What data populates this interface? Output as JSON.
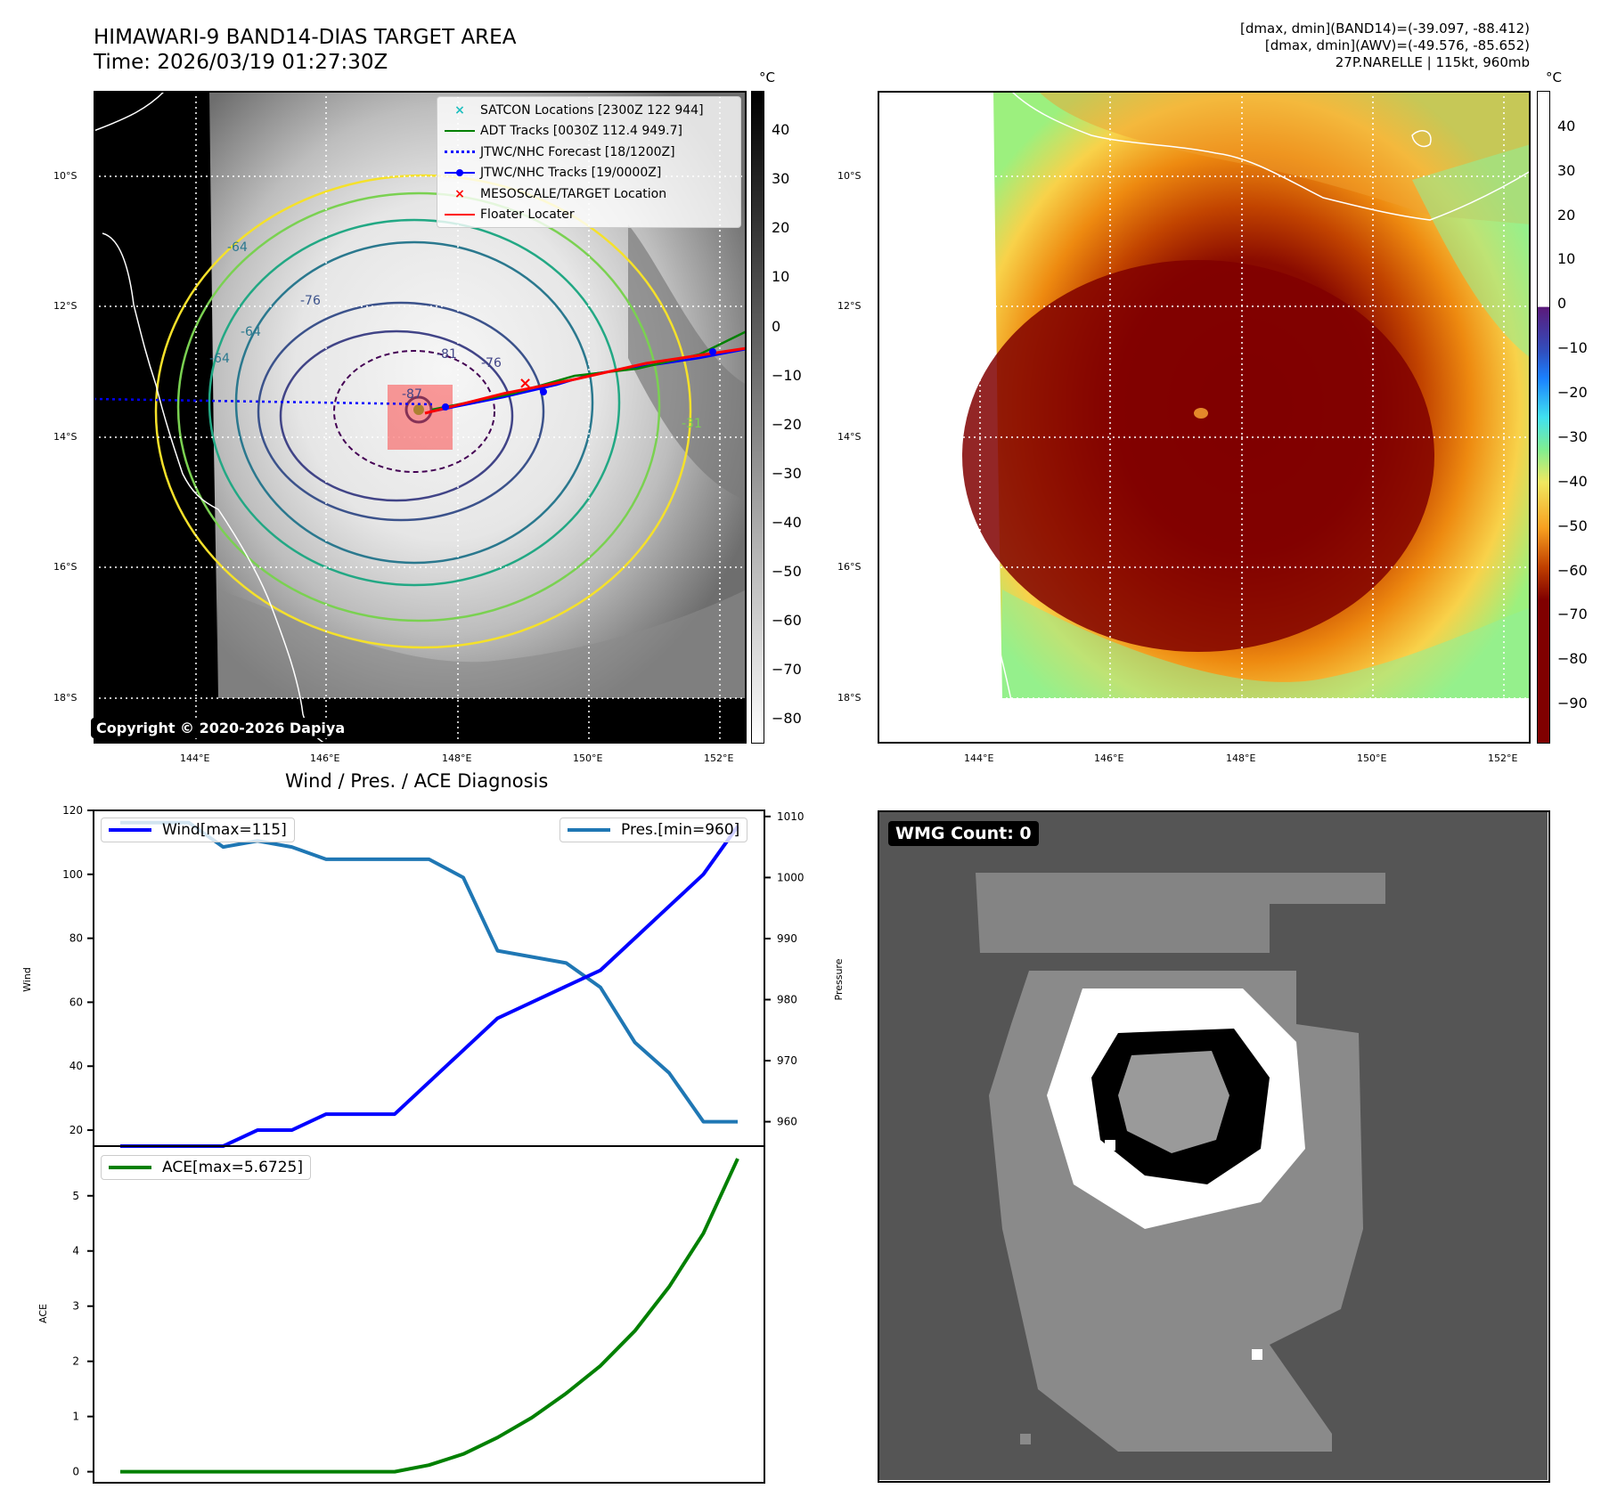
{
  "header": {
    "title": "HIMAWARI-9 BAND14-DIAS TARGET AREA",
    "time": "Time: 2026/03/19 01:27:30Z",
    "info_line1": "[dmax, dmin](BAND14)=(-39.097, -88.412)",
    "info_line2": "[dmax, dmin](AWV)=(-49.576, -85.652)",
    "info_line3": "27P.NARELLE | 115kt, 960mb"
  },
  "map_axes": {
    "lat_ticks": [
      "10°S",
      "12°S",
      "14°S",
      "16°S",
      "18°S"
    ],
    "lon_ticks": [
      "144°E",
      "146°E",
      "148°E",
      "150°E",
      "152°E"
    ]
  },
  "left_map": {
    "copyright": "Copyright © 2020-2026 Dapiya",
    "colorbar_unit": "°C",
    "colorbar_ticks": [
      "40",
      "30",
      "20",
      "10",
      "0",
      "−10",
      "−20",
      "−30",
      "−40",
      "−50",
      "−60",
      "−70",
      "−80"
    ],
    "contour_labels": [
      "-64",
      "-76",
      "-64",
      "-64",
      "-81",
      "-76",
      "-87",
      "-31"
    ],
    "legend": [
      {
        "label": "SATCON Locations [2300Z 122 944]",
        "color": "#1fbfbf",
        "marker": "x-icon"
      },
      {
        "label": "ADT Tracks [0030Z 112.4 949.7]",
        "color": "#008000",
        "marker": "line-icon"
      },
      {
        "label": "JTWC/NHC Forecast [18/1200Z]",
        "color": "#0000ff",
        "marker": "dotted-line-icon"
      },
      {
        "label": "JTWC/NHC Tracks [19/0000Z]",
        "color": "#0000ff",
        "marker": "line-dot-icon"
      },
      {
        "label": "MESOSCALE/TARGET Location",
        "color": "#ff0000",
        "marker": "x-icon"
      },
      {
        "label": "Floater Locater",
        "color": "#ff0000",
        "marker": "line-icon"
      }
    ]
  },
  "right_map": {
    "colorbar_unit": "°C",
    "colorbar_ticks": [
      "40",
      "30",
      "20",
      "10",
      "0",
      "−10",
      "−20",
      "−30",
      "−40",
      "−50",
      "−60",
      "−70",
      "−80",
      "−90"
    ]
  },
  "wmg_panel": {
    "label": "WMG Count: 0"
  },
  "chart_data": [
    {
      "type": "line",
      "title": "Wind / Pres. / ACE Diagnosis",
      "ylabel": "Wind",
      "ylabel_right": "Pressure",
      "ylim": [
        15,
        120
      ],
      "ylim_right": [
        956,
        1011
      ],
      "yticks": [
        "20",
        "40",
        "60",
        "80",
        "100",
        "120"
      ],
      "yticks_right": [
        "960",
        "970",
        "980",
        "990",
        "1000",
        "1010"
      ],
      "x": [
        0,
        1,
        2,
        3,
        4,
        5,
        6,
        7,
        8,
        9,
        10,
        11,
        12,
        13,
        14,
        15,
        16,
        17,
        18
      ],
      "series": [
        {
          "name": "Wind[max=115]",
          "color": "#0000ff",
          "axis": "left",
          "values": [
            15,
            15,
            15,
            15,
            20,
            20,
            25,
            25,
            25,
            35,
            45,
            55,
            60,
            65,
            70,
            80,
            90,
            100,
            115
          ]
        },
        {
          "name": "Pres.[min=960]",
          "color": "#1f77b4",
          "axis": "right",
          "values": [
            1009,
            1009,
            1009,
            1005,
            1006,
            1005,
            1003,
            1003,
            1003,
            1003,
            1000,
            988,
            987,
            986,
            982,
            973,
            968,
            960,
            960
          ]
        }
      ]
    },
    {
      "type": "line",
      "ylabel": "ACE",
      "ylim": [
        -0.2,
        5.9
      ],
      "yticks": [
        "0",
        "1",
        "2",
        "3",
        "4",
        "5"
      ],
      "x": [
        0,
        1,
        2,
        3,
        4,
        5,
        6,
        7,
        8,
        9,
        10,
        11,
        12,
        13,
        14,
        15,
        16,
        17,
        18
      ],
      "series": [
        {
          "name": "ACE[max=5.6725]",
          "color": "#008000",
          "values": [
            0,
            0,
            0,
            0,
            0,
            0,
            0,
            0,
            0,
            0.12,
            0.32,
            0.62,
            0.98,
            1.42,
            1.92,
            2.55,
            3.35,
            4.32,
            5.6725
          ]
        }
      ]
    }
  ]
}
